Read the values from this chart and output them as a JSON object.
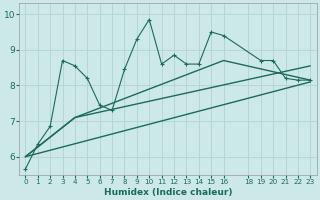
{
  "xlabel": "Humidex (Indice chaleur)",
  "bg_color": "#cde8e8",
  "grid_color": "#b8d5d5",
  "line_color": "#1a6b5a",
  "xlim": [
    -0.5,
    23.5
  ],
  "ylim": [
    5.5,
    10.3
  ],
  "yticks": [
    6,
    7,
    8,
    9,
    10
  ],
  "xticks": [
    0,
    1,
    2,
    3,
    4,
    5,
    6,
    7,
    8,
    9,
    10,
    11,
    12,
    13,
    14,
    15,
    16,
    18,
    19,
    20,
    21,
    22,
    23
  ],
  "main_x": [
    0,
    1,
    2,
    3,
    4,
    5,
    6,
    7,
    8,
    9,
    10,
    11,
    12,
    13,
    14,
    15,
    16,
    19,
    20,
    21,
    22,
    23
  ],
  "main_y": [
    5.65,
    6.35,
    6.85,
    8.7,
    8.55,
    8.2,
    7.45,
    7.3,
    8.45,
    9.3,
    9.85,
    8.6,
    8.85,
    8.6,
    8.6,
    9.5,
    9.4,
    8.7,
    8.7,
    8.2,
    8.15,
    8.15
  ],
  "line1_x": [
    0,
    23
  ],
  "line1_y": [
    6.0,
    8.1
  ],
  "line2_x": [
    0,
    4,
    23
  ],
  "line2_y": [
    6.0,
    7.1,
    8.55
  ],
  "line3_x": [
    0,
    4,
    16,
    23
  ],
  "line3_y": [
    6.0,
    7.1,
    8.7,
    8.15
  ]
}
